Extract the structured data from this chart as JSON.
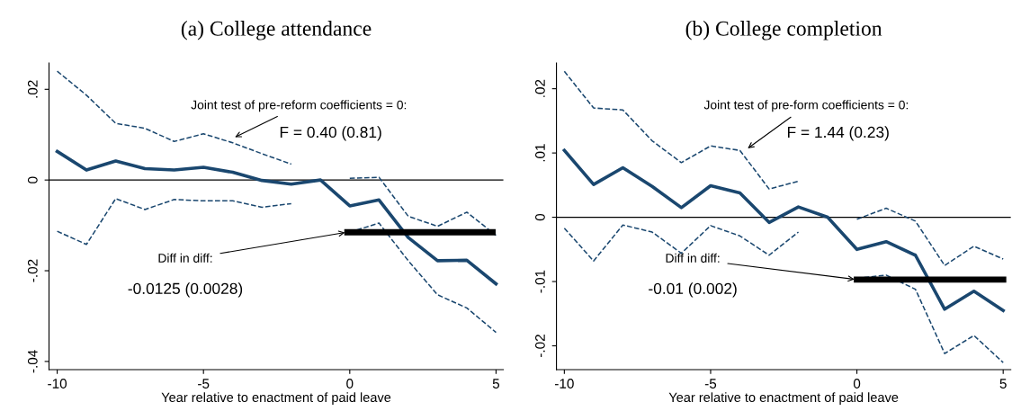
{
  "chart_data": [
    {
      "type": "line",
      "title": "(a) College attendance",
      "xlabel": "Year relative to enactment of paid leave",
      "x": [
        -10,
        -9,
        -8,
        -7,
        -6,
        -5,
        -4,
        -3,
        -2,
        -1,
        0,
        1,
        2,
        3,
        4,
        5
      ],
      "xlim": [
        -10.28,
        5.25
      ],
      "xticks": [
        -10,
        -5,
        0,
        5
      ],
      "ylim": [
        -0.0418,
        0.0258
      ],
      "yticks": [
        {
          "value": 0.02,
          "label": ".02"
        },
        {
          "value": 0,
          "label": "0"
        },
        {
          "value": -0.02,
          "label": "-.02"
        },
        {
          "value": -0.04,
          "label": "-.04"
        }
      ],
      "grid": false,
      "legend": false,
      "marker": "none",
      "series": [
        {
          "color": "#1a476f",
          "line_style": "solid",
          "values": [
            0.0063,
            0.0022,
            0.0042,
            0.0025,
            0.0022,
            0.0028,
            0.0017,
            -0.0001,
            -0.0009,
            0,
            -0.0057,
            -0.0044,
            -0.0127,
            -0.0178,
            -0.0177,
            -0.0229
          ]
        },
        {
          "color": "#1a476f",
          "line_style": "dashed",
          "values": [
            0.024,
            0.0187,
            0.0125,
            0.0114,
            0.0085,
            0.0102,
            0.0082,
            0.0058,
            0.0035,
            null,
            0.0004,
            0.0006,
            -0.008,
            -0.0102,
            -0.0071,
            -0.0122
          ]
        },
        {
          "color": "#1a476f",
          "line_style": "dashed",
          "values": [
            -0.0113,
            -0.0142,
            -0.0041,
            -0.0065,
            -0.0043,
            -0.0046,
            -0.0046,
            -0.006,
            -0.0052,
            null,
            -0.0115,
            -0.0095,
            -0.0178,
            -0.0253,
            -0.0282,
            -0.0336
          ]
        },
        {
          "color": "#000000",
          "line_style": "solid",
          "x": [
            -0.08,
            4.88
          ],
          "values": [
            -0.0115,
            -0.0115
          ]
        }
      ],
      "ref_lines": [
        {
          "axis": "y",
          "value": 0,
          "color": "#000000"
        }
      ],
      "annotations": [
        {
          "text": "Joint test of pre-reform coefficients = 0:",
          "x": -4,
          "y": 0.0092
        },
        "F = 0.40 (0.81)",
        {
          "text": "Diff in diff:",
          "x": -0.08,
          "y": -0.0115
        },
        "-0.0125 (0.0028)"
      ]
    },
    {
      "type": "line",
      "title": "(b) College completion",
      "xlabel": "Year relative to enactment of paid leave",
      "x": [
        -10,
        -9,
        -8,
        -7,
        -6,
        -5,
        -4,
        -3,
        -2,
        -1,
        0,
        1,
        2,
        3,
        4,
        5
      ],
      "xlim": [
        -10.27,
        5.26
      ],
      "xticks": [
        -10,
        -5,
        0,
        5
      ],
      "ylim": [
        -0.0237,
        0.024
      ],
      "yticks": [
        {
          "value": 0.02,
          "label": ".02"
        },
        {
          "value": 0.01,
          "label": ".01"
        },
        {
          "value": 0,
          "label": "0"
        },
        {
          "value": -0.01,
          "label": "-.01"
        },
        {
          "value": -0.02,
          "label": "-.02"
        }
      ],
      "grid": false,
      "legend": false,
      "marker": "none",
      "series": [
        {
          "color": "#1a476f",
          "line_style": "solid",
          "values": [
            0.0104,
            0.0051,
            0.0077,
            0.0048,
            0.0015,
            0.0049,
            0.0038,
            -0.0008,
            0.0016,
            0,
            -0.005,
            -0.0038,
            -0.0059,
            -0.0143,
            -0.0115,
            -0.0145
          ]
        },
        {
          "color": "#1a476f",
          "line_style": "dashed",
          "values": [
            0.0227,
            0.017,
            0.0167,
            0.0119,
            0.0085,
            0.0111,
            0.0104,
            0.0044,
            0.0056,
            null,
            -0.0003,
            0.0014,
            -0.0006,
            -0.0075,
            -0.0045,
            -0.0065
          ]
        },
        {
          "color": "#1a476f",
          "line_style": "dashed",
          "values": [
            -0.0017,
            -0.0068,
            -0.0012,
            -0.0023,
            -0.0056,
            -0.0013,
            -0.0029,
            -0.0059,
            -0.0023,
            null,
            -0.0095,
            -0.009,
            -0.0112,
            -0.0212,
            -0.0184,
            -0.0226
          ]
        },
        {
          "color": "#000000",
          "line_style": "solid",
          "x": [
            0,
            5
          ],
          "values": [
            -0.0097,
            -0.0097
          ]
        }
      ],
      "ref_lines": [
        {
          "axis": "y",
          "value": 0,
          "color": "#000000"
        }
      ],
      "annotations": [
        {
          "text": "Joint test of pre-form coefficients = 0:",
          "x": -3.8,
          "y": 0.0105
        },
        "F = 1.44 (0.23)",
        {
          "text": "Diff in diff:",
          "x": 0,
          "y": -0.0097
        },
        "-0.01 (0.002)"
      ]
    }
  ]
}
